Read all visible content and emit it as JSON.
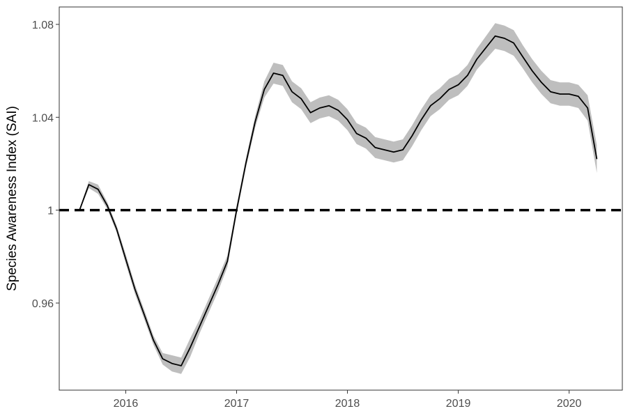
{
  "chart_data": {
    "type": "line",
    "title": "",
    "xlabel": "",
    "ylabel": "Species Awareness Index (SAI)",
    "xlim": [
      2015.4,
      2020.48
    ],
    "ylim": [
      0.9225,
      1.0875
    ],
    "x_ticks": [
      {
        "value": 2016,
        "label": "2016"
      },
      {
        "value": 2017,
        "label": "2017"
      },
      {
        "value": 2018,
        "label": "2018"
      },
      {
        "value": 2019,
        "label": "2019"
      },
      {
        "value": 2020,
        "label": "2020"
      }
    ],
    "y_ticks": [
      {
        "value": 0.96,
        "label": "0.96"
      },
      {
        "value": 1.0,
        "label": "1"
      },
      {
        "value": 1.04,
        "label": "1.04"
      },
      {
        "value": 1.08,
        "label": "1.08"
      }
    ],
    "reference_line": {
      "y": 1.0,
      "style": "dashed"
    },
    "grid": false,
    "series": [
      {
        "x": [
          2015.583,
          2015.667,
          2015.75,
          2015.833,
          2015.917,
          2016.0,
          2016.083,
          2016.167,
          2016.25,
          2016.333,
          2016.417,
          2016.5,
          2016.583,
          2016.667,
          2016.75,
          2016.833,
          2016.917,
          2017.0,
          2017.083,
          2017.167,
          2017.25,
          2017.333,
          2017.417,
          2017.5,
          2017.583,
          2017.667,
          2017.75,
          2017.833,
          2017.917,
          2018.0,
          2018.083,
          2018.167,
          2018.25,
          2018.333,
          2018.417,
          2018.5,
          2018.583,
          2018.667,
          2018.75,
          2018.833,
          2018.917,
          2019.0,
          2019.083,
          2019.167,
          2019.25,
          2019.333,
          2019.417,
          2019.5,
          2019.583,
          2019.667,
          2019.75,
          2019.833,
          2019.917,
          2020.0,
          2020.083,
          2020.167,
          2020.25
        ],
        "y": [
          1.0,
          1.011,
          1.009,
          1.002,
          0.992,
          0.979,
          0.966,
          0.955,
          0.944,
          0.936,
          0.934,
          0.933,
          0.941,
          0.95,
          0.959,
          0.968,
          0.978,
          1.0,
          1.02,
          1.038,
          1.052,
          1.059,
          1.058,
          1.051,
          1.048,
          1.042,
          1.044,
          1.045,
          1.043,
          1.039,
          1.033,
          1.031,
          1.027,
          1.026,
          1.025,
          1.026,
          1.032,
          1.039,
          1.045,
          1.048,
          1.052,
          1.054,
          1.058,
          1.065,
          1.07,
          1.075,
          1.074,
          1.072,
          1.066,
          1.06,
          1.055,
          1.051,
          1.05,
          1.05,
          1.049,
          1.044,
          1.022
        ],
        "lower": [
          0.9995,
          1.0095,
          1.007,
          1.0005,
          0.9905,
          0.977,
          0.964,
          0.953,
          0.942,
          0.9335,
          0.9305,
          0.9295,
          0.937,
          0.947,
          0.956,
          0.965,
          0.9755,
          0.998,
          1.018,
          1.0355,
          1.0485,
          1.0545,
          1.0535,
          1.0465,
          1.0435,
          1.0375,
          1.0395,
          1.0405,
          1.0385,
          1.0345,
          1.0285,
          1.0265,
          1.0225,
          1.0215,
          1.0205,
          1.0215,
          1.0275,
          1.0345,
          1.0405,
          1.0435,
          1.0475,
          1.0495,
          1.0535,
          1.0605,
          1.065,
          1.0695,
          1.0685,
          1.0665,
          1.061,
          1.055,
          1.05,
          1.046,
          1.045,
          1.045,
          1.044,
          1.0385,
          1.016
        ],
        "upper": [
          1.0005,
          1.0125,
          1.011,
          1.0035,
          0.9935,
          0.981,
          0.968,
          0.957,
          0.946,
          0.9385,
          0.9375,
          0.9365,
          0.945,
          0.953,
          0.962,
          0.971,
          0.9805,
          1.002,
          1.022,
          1.0405,
          1.0555,
          1.0635,
          1.0625,
          1.0555,
          1.0525,
          1.0465,
          1.0485,
          1.0495,
          1.0475,
          1.0435,
          1.0375,
          1.0355,
          1.0315,
          1.0305,
          1.0295,
          1.0305,
          1.0365,
          1.0435,
          1.0495,
          1.0525,
          1.0565,
          1.0585,
          1.0625,
          1.0695,
          1.075,
          1.0805,
          1.0795,
          1.0775,
          1.071,
          1.065,
          1.06,
          1.056,
          1.055,
          1.055,
          1.054,
          1.0495,
          1.028
        ]
      }
    ]
  }
}
